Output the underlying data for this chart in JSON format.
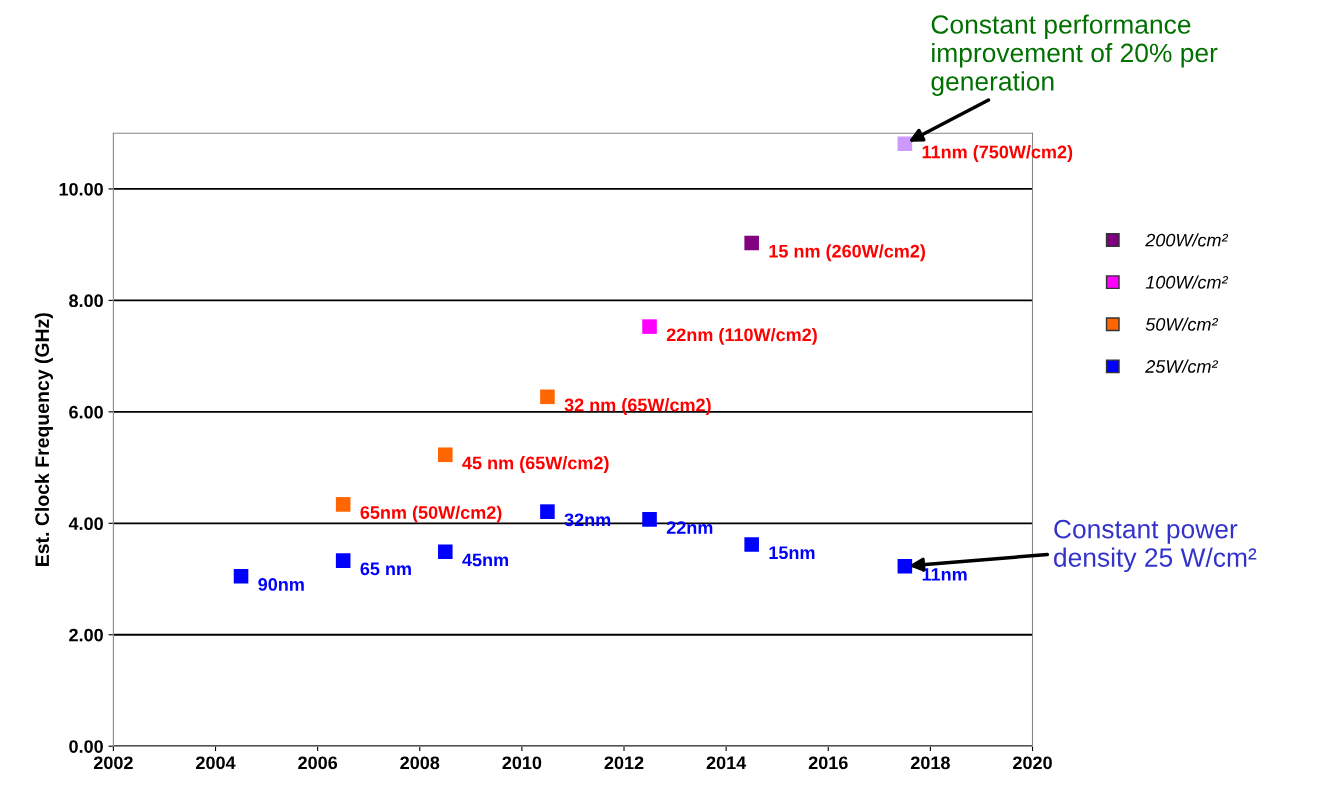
{
  "chart_data": {
    "type": "scatter",
    "ylabel": "Est. Clock Frequency (GHz)",
    "xlim": [
      2002,
      2020
    ],
    "xticks": [
      2002,
      2004,
      2006,
      2008,
      2010,
      2012,
      2014,
      2016,
      2018,
      2020
    ],
    "ylim": [
      0,
      11
    ],
    "yticks": [
      {
        "value": 0,
        "label": "0.00"
      },
      {
        "value": 2,
        "label": "2.00"
      },
      {
        "value": 4,
        "label": "4.00"
      },
      {
        "value": 6,
        "label": "6.00"
      },
      {
        "value": 8,
        "label": "8.00"
      },
      {
        "value": 10,
        "label": "10.00"
      }
    ],
    "grid": "y",
    "legend": "right",
    "marker": "square",
    "series": [
      {
        "name": "200W/cm²",
        "color": "#800080",
        "colors": [
          "#800080",
          "#cc99ff"
        ],
        "x": [
          2014.5,
          2017.5
        ],
        "values": [
          9.03,
          10.81
        ]
      },
      {
        "name": "100W/cm²",
        "color": "#ff00ff",
        "x": [
          2012.5
        ],
        "values": [
          7.53
        ]
      },
      {
        "name": "50W/cm²",
        "color": "#ff6600",
        "x": [
          2006.5,
          2008.5,
          2010.5
        ],
        "values": [
          4.34,
          5.23,
          6.27
        ]
      },
      {
        "name": "25W/cm²",
        "color": "#0000ff",
        "x": [
          2004.5,
          2006.5,
          2008.5,
          2010.5,
          2012.5,
          2014.5,
          2017.5
        ],
        "values": [
          3.05,
          3.33,
          3.49,
          4.21,
          4.07,
          3.62,
          3.23
        ]
      }
    ],
    "annotations": [
      {
        "text": "15 nm (260W/cm2)",
        "x": 2014.5,
        "y": 9.03
      },
      {
        "text": "11nm (750W/cm2)",
        "x": 2017.5,
        "y": 10.81
      },
      {
        "text": "22nm (110W/cm2)",
        "x": 2012.5,
        "y": 7.53
      },
      {
        "text": "65nm (50W/cm2)",
        "x": 2006.5,
        "y": 4.34
      },
      {
        "text": "45 nm (65W/cm2)",
        "x": 2008.5,
        "y": 5.23
      },
      {
        "text": "32 nm (65W/cm2)",
        "x": 2010.5,
        "y": 6.27
      },
      {
        "text": "90nm",
        "x": 2004.5,
        "y": 3.05
      },
      {
        "text": "65 nm",
        "x": 2006.5,
        "y": 3.33
      },
      {
        "text": "45nm",
        "x": 2008.5,
        "y": 3.49
      },
      {
        "text": "32nm",
        "x": 2010.5,
        "y": 4.21
      },
      {
        "text": "22nm",
        "x": 2012.5,
        "y": 4.07
      },
      {
        "text": "15nm",
        "x": 2014.5,
        "y": 3.62
      },
      {
        "text": "11nm",
        "x": 2017.5,
        "y": 3.23
      },
      {
        "text": "Constant performance\nimprovement of 20% per\ngeneration",
        "x": 2017.5,
        "y": 10.81
      },
      {
        "text": "Constant power\ndensity 25 W/cm²",
        "x": 2017.5,
        "y": 3.23
      }
    ]
  }
}
